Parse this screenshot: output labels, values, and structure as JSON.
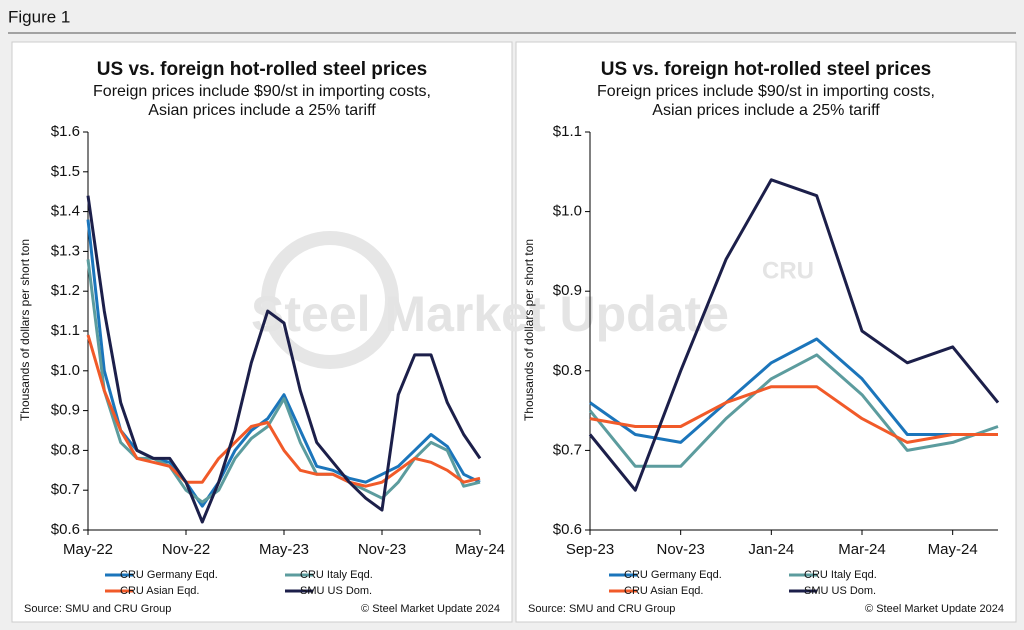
{
  "figure_label": "Figure 1",
  "watermark": "Steel Market Update",
  "logo": "CRU",
  "chart_data": [
    {
      "type": "line",
      "title": "US vs. foreign hot-rolled steel prices",
      "subtitle": [
        "Foreign prices include $90/st in importing costs,",
        "Asian prices include a 25% tariff"
      ],
      "y_label": "Thousands of dollars per short ton",
      "source": "Source: SMU and CRU Group",
      "copyright": "© Steel Market Update 2024",
      "x": [
        "2022-05",
        "2022-06",
        "2022-07",
        "2022-08",
        "2022-09",
        "2022-10",
        "2022-11",
        "2022-12",
        "2023-01",
        "2023-02",
        "2023-03",
        "2023-04",
        "2023-05",
        "2023-06",
        "2023-07",
        "2023-08",
        "2023-09",
        "2023-10",
        "2023-11",
        "2023-12",
        "2024-01",
        "2024-02",
        "2024-03",
        "2024-04",
        "2024-05"
      ],
      "xlim": [
        "2022-05",
        "2024-05"
      ],
      "xticks": [
        {
          "value": "2022-05",
          "label": "May-22"
        },
        {
          "value": "2022-11",
          "label": "Nov-22"
        },
        {
          "value": "2023-05",
          "label": "May-23"
        },
        {
          "value": "2023-11",
          "label": "Nov-23"
        },
        {
          "value": "2024-05",
          "label": "May-24"
        }
      ],
      "ylim": [
        0.6,
        1.6
      ],
      "yticks": [
        {
          "value": 0.6,
          "label": "$0.6"
        },
        {
          "value": 0.7,
          "label": "$0.7"
        },
        {
          "value": 0.8,
          "label": "$0.8"
        },
        {
          "value": 0.9,
          "label": "$0.9"
        },
        {
          "value": 1.0,
          "label": "$1.0"
        },
        {
          "value": 1.1,
          "label": "$1.1"
        },
        {
          "value": 1.2,
          "label": "$1.2"
        },
        {
          "value": 1.3,
          "label": "$1.3"
        },
        {
          "value": 1.4,
          "label": "$1.4"
        },
        {
          "value": 1.5,
          "label": "$1.5"
        },
        {
          "value": 1.6,
          "label": "$1.6"
        }
      ],
      "series": [
        {
          "name": "CRU Germany Eqd.",
          "color": "#1b75bb",
          "values": [
            1.38,
            1.0,
            0.85,
            0.8,
            0.78,
            0.77,
            0.72,
            0.66,
            0.72,
            0.8,
            0.85,
            0.88,
            0.94,
            0.85,
            0.76,
            0.75,
            0.73,
            0.72,
            0.74,
            0.76,
            0.8,
            0.84,
            0.81,
            0.74,
            0.72
          ]
        },
        {
          "name": "CRU Italy Eqd.",
          "color": "#5c9c9e",
          "values": [
            1.28,
            0.95,
            0.82,
            0.78,
            0.78,
            0.76,
            0.7,
            0.67,
            0.7,
            0.78,
            0.83,
            0.86,
            0.93,
            0.82,
            0.74,
            0.74,
            0.72,
            0.7,
            0.68,
            0.72,
            0.78,
            0.82,
            0.8,
            0.71,
            0.72
          ]
        },
        {
          "name": "CRU Asian Eqd.",
          "color": "#f15a29",
          "values": [
            1.09,
            0.95,
            0.85,
            0.78,
            0.77,
            0.76,
            0.72,
            0.72,
            0.78,
            0.82,
            0.86,
            0.87,
            0.8,
            0.75,
            0.74,
            0.74,
            0.72,
            0.71,
            0.72,
            0.75,
            0.78,
            0.77,
            0.75,
            0.72,
            0.73
          ]
        },
        {
          "name": "SMU US Dom.",
          "color": "#1c1f4a",
          "values": [
            1.44,
            1.15,
            0.92,
            0.8,
            0.78,
            0.78,
            0.72,
            0.62,
            0.72,
            0.85,
            1.02,
            1.15,
            1.12,
            0.95,
            0.82,
            0.77,
            0.72,
            0.68,
            0.65,
            0.94,
            1.04,
            1.04,
            0.92,
            0.84,
            0.78
          ]
        }
      ]
    },
    {
      "type": "line",
      "title": "US vs. foreign hot-rolled steel prices",
      "subtitle": [
        "Foreign prices include $90/st in importing costs,",
        "Asian prices include a 25% tariff"
      ],
      "y_label": "Thousands of dollars per short ton",
      "source": "Source: SMU and CRU Group",
      "copyright": "© Steel Market Update 2024",
      "x": [
        "2023-09",
        "2023-10",
        "2023-11",
        "2023-12",
        "2024-01",
        "2024-02",
        "2024-03",
        "2024-04",
        "2024-05",
        "2024-06"
      ],
      "xlim": [
        "2023-09",
        "2024-06"
      ],
      "xticks": [
        {
          "value": "2023-09",
          "label": "Sep-23"
        },
        {
          "value": "2023-11",
          "label": "Nov-23"
        },
        {
          "value": "2024-01",
          "label": "Jan-24"
        },
        {
          "value": "2024-03",
          "label": "Mar-24"
        },
        {
          "value": "2024-05",
          "label": "May-24"
        }
      ],
      "ylim": [
        0.6,
        1.1
      ],
      "yticks": [
        {
          "value": 0.6,
          "label": "$0.6"
        },
        {
          "value": 0.7,
          "label": "$0.7"
        },
        {
          "value": 0.8,
          "label": "$0.8"
        },
        {
          "value": 0.9,
          "label": "$0.9"
        },
        {
          "value": 1.0,
          "label": "$1.0"
        },
        {
          "value": 1.1,
          "label": "$1.1"
        }
      ],
      "series": [
        {
          "name": "CRU Germany Eqd.",
          "color": "#1b75bb",
          "values": [
            0.76,
            0.72,
            0.71,
            0.76,
            0.81,
            0.84,
            0.79,
            0.72,
            0.72,
            0.72
          ]
        },
        {
          "name": "CRU Italy Eqd.",
          "color": "#5c9c9e",
          "values": [
            0.75,
            0.68,
            0.68,
            0.74,
            0.79,
            0.82,
            0.77,
            0.7,
            0.71,
            0.73
          ]
        },
        {
          "name": "CRU Asian Eqd.",
          "color": "#f15a29",
          "values": [
            0.74,
            0.73,
            0.73,
            0.76,
            0.78,
            0.78,
            0.74,
            0.71,
            0.72,
            0.72
          ]
        },
        {
          "name": "SMU US Dom.",
          "color": "#1c1f4a",
          "values": [
            0.72,
            0.65,
            0.8,
            0.94,
            1.04,
            1.02,
            0.85,
            0.81,
            0.83,
            0.76
          ]
        }
      ]
    }
  ]
}
